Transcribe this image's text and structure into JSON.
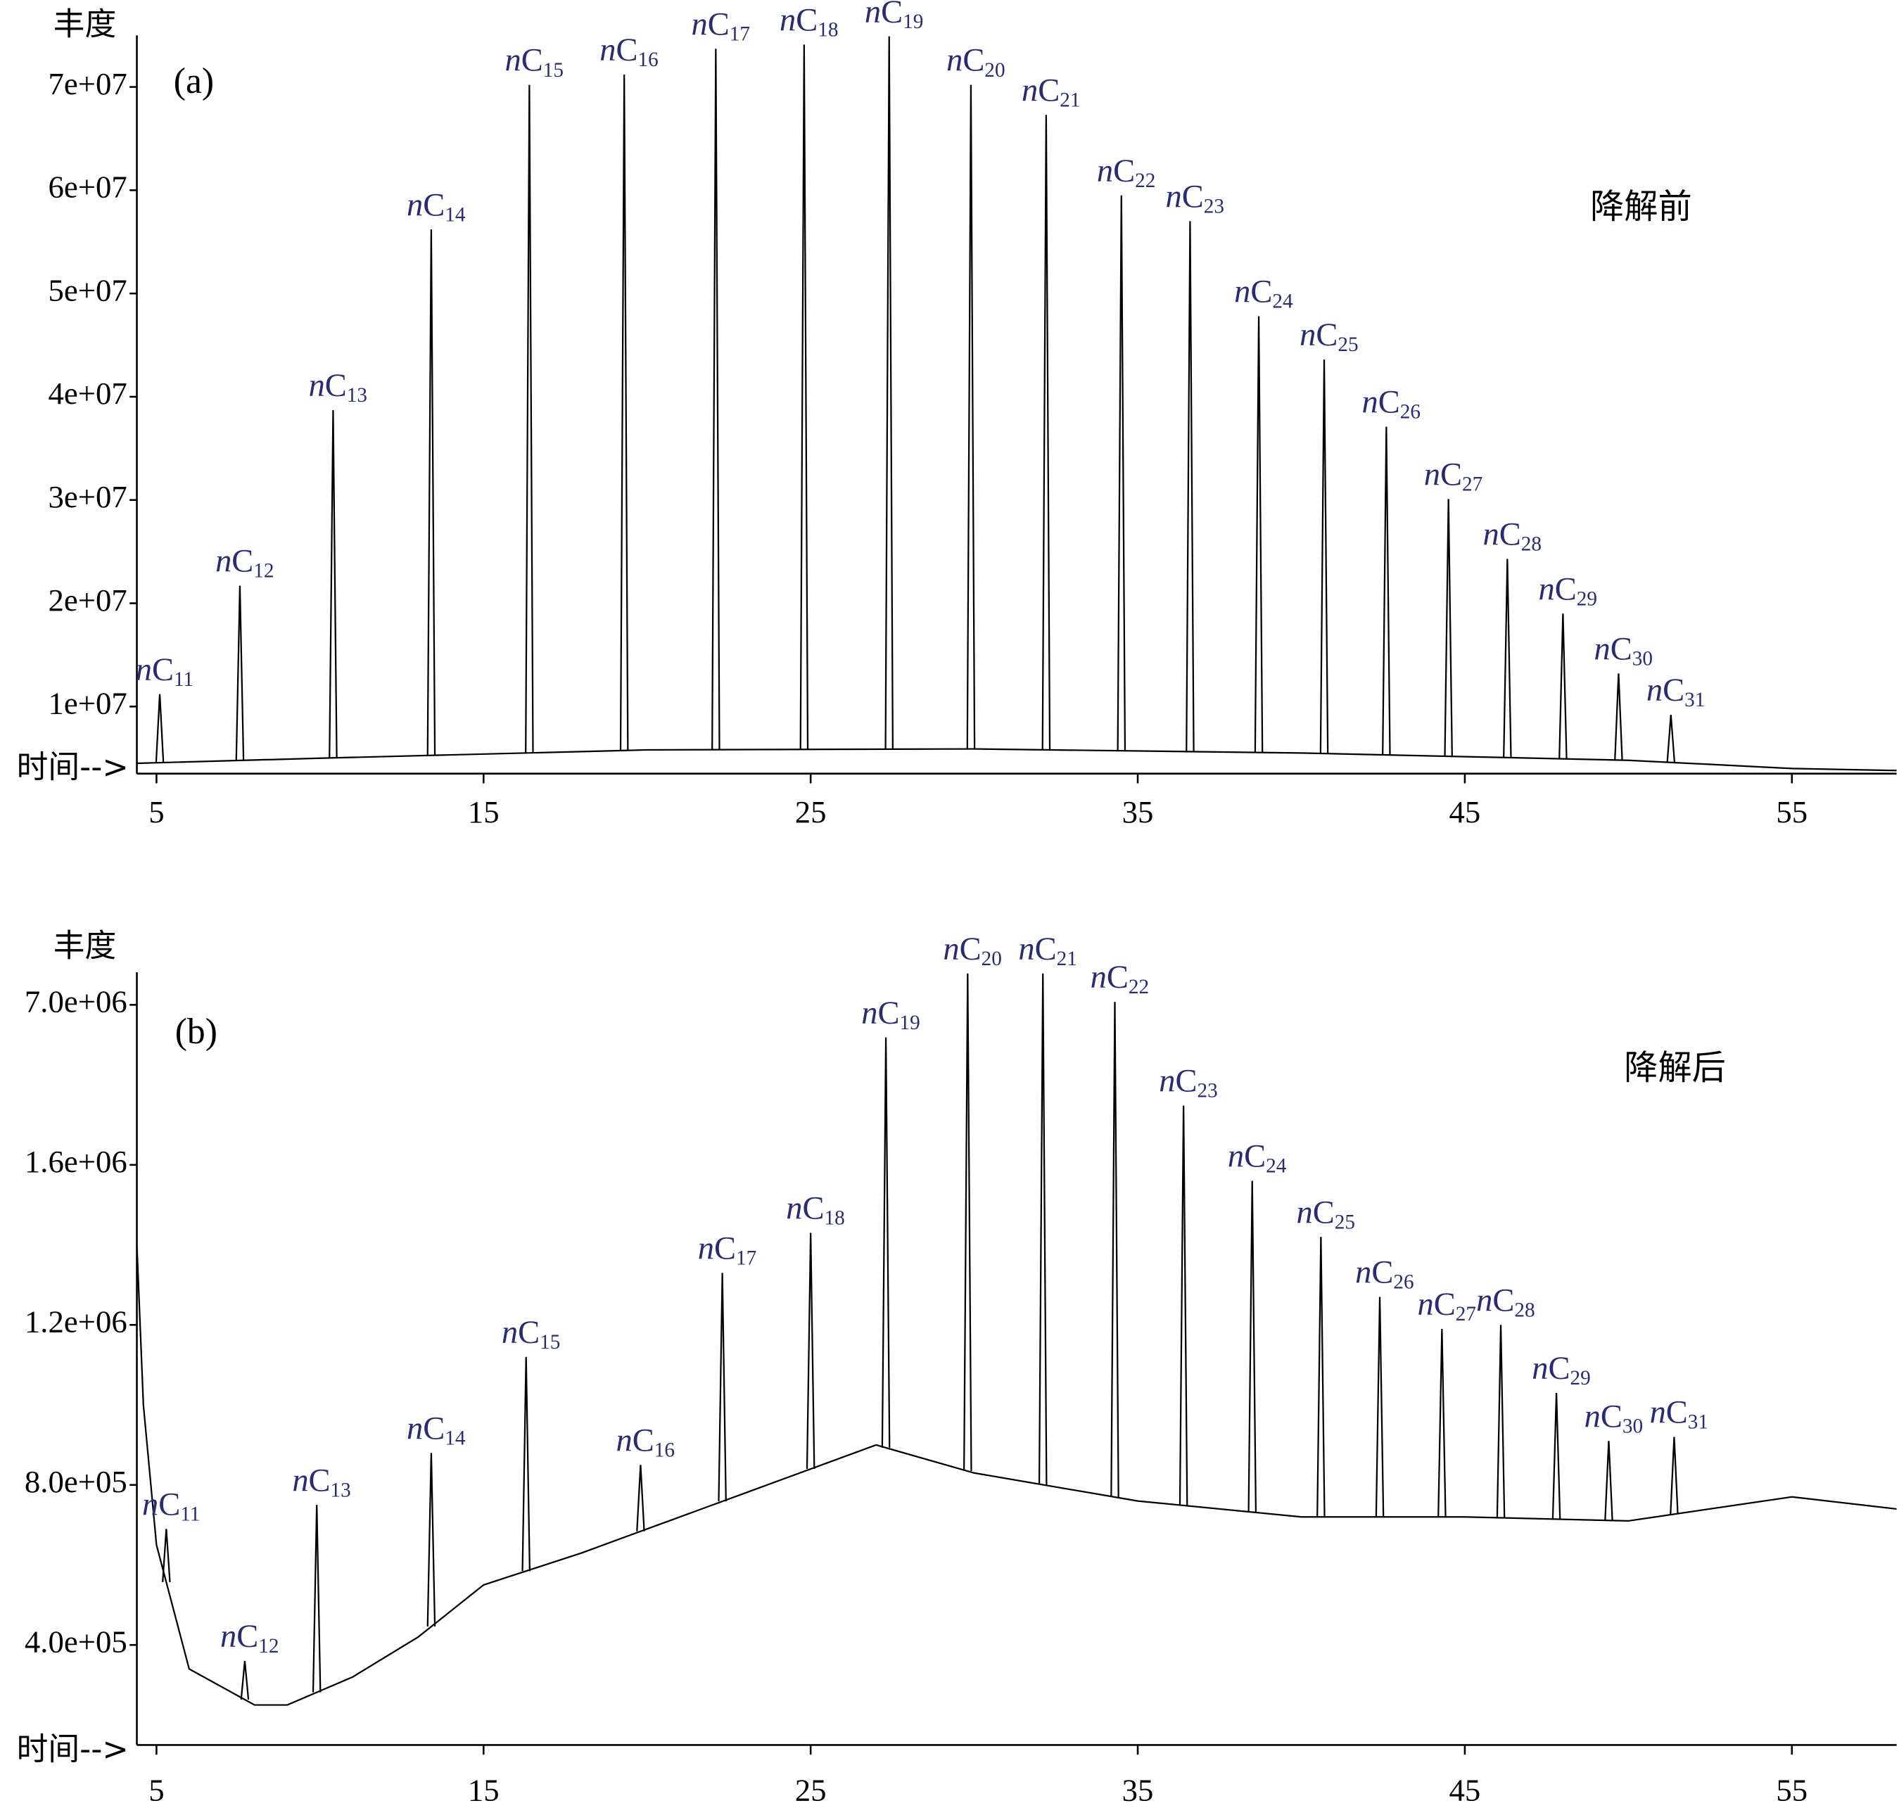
{
  "chart_data": [
    {
      "type": "line",
      "label": "(a)",
      "annotation": "降解前",
      "ylabel": "丰度",
      "xlabel": "时间-->",
      "xlim": [
        4.4,
        58.2
      ],
      "xticks": [
        5,
        15,
        25,
        35,
        45,
        55
      ],
      "ylim": [
        3500000,
        75000000
      ],
      "yticks": [
        {
          "value": 10000000,
          "label": "1e+07"
        },
        {
          "value": 20000000,
          "label": "2e+07"
        },
        {
          "value": 30000000,
          "label": "3e+07"
        },
        {
          "value": 40000000,
          "label": "4e+07"
        },
        {
          "value": 50000000,
          "label": "5e+07"
        },
        {
          "value": 60000000,
          "label": "6e+07"
        },
        {
          "value": 70000000,
          "label": "7e+07"
        }
      ],
      "peaks": {
        "color": "#000000",
        "names": [
          "nC11",
          "nC12",
          "nC13",
          "nC14",
          "nC15",
          "nC16",
          "nC17",
          "nC18",
          "nC19",
          "nC20",
          "nC21",
          "nC22",
          "nC23",
          "nC24",
          "nC25",
          "nC26",
          "nC27",
          "nC28",
          "nC29",
          "nC30",
          "nC31"
        ],
        "x": [
          5.1,
          7.55,
          10.4,
          13.4,
          16.4,
          19.3,
          22.1,
          24.8,
          27.4,
          29.9,
          32.2,
          34.5,
          36.6,
          38.7,
          40.7,
          42.6,
          44.5,
          46.3,
          48.0,
          49.7,
          51.3
        ],
        "values": [
          11200000,
          21700000,
          38700000,
          56200000,
          70200000,
          71200000,
          73700000,
          74100000,
          74900000,
          70200000,
          67300000,
          59500000,
          57000000,
          47800000,
          43600000,
          37100000,
          30100000,
          24300000,
          19000000,
          13200000,
          9200000
        ]
      },
      "series": [
        {
          "color": "#000000",
          "x": [
            4.4,
            10,
            20,
            30,
            40,
            50,
            55,
            58.2
          ],
          "values": [
            4500000,
            5000000,
            5800000,
            5900000,
            5500000,
            4800000,
            4000000,
            3800000
          ]
        }
      ]
    },
    {
      "type": "line",
      "label": "(b)",
      "annotation": "降解后",
      "ylabel": "丰度",
      "xlabel": "时间-->",
      "xlim": [
        4.4,
        58.2
      ],
      "xticks": [
        5,
        15,
        25,
        35,
        45,
        55
      ],
      "ylim": [
        150000,
        8100000
      ],
      "yticks": [
        {
          "value": 400000,
          "label": "4.0e+05"
        },
        {
          "value": 800000,
          "label": "8.0e+05"
        },
        {
          "value": 1200000,
          "label": "1.2e+06"
        },
        {
          "value": 1600000,
          "label": "1.6e+06"
        },
        {
          "value": 7000000,
          "label": "7.0e+06"
        }
      ],
      "peaks": {
        "color": "#000000",
        "names": [
          "nC11",
          "nC12",
          "nC13",
          "nC14",
          "nC15",
          "nC16",
          "nC17",
          "nC18",
          "nC19",
          "nC20",
          "nC21",
          "nC22",
          "nC23",
          "nC24",
          "nC25",
          "nC26",
          "nC27",
          "nC28",
          "nC29",
          "nC30",
          "nC31"
        ],
        "x": [
          5.3,
          7.7,
          9.9,
          13.4,
          16.3,
          19.8,
          22.3,
          25.0,
          27.3,
          29.8,
          32.1,
          34.3,
          36.4,
          38.5,
          40.6,
          42.4,
          44.3,
          46.1,
          47.8,
          49.4,
          51.4
        ],
        "values": [
          690000,
          360000,
          750000,
          880000,
          1120000,
          850000,
          1330000,
          1430000,
          5900000,
          8060000,
          8060000,
          7100000,
          3600000,
          1560000,
          1420000,
          1270000,
          1190000,
          1200000,
          1030000,
          910000,
          920000
        ]
      },
      "series": [
        {
          "color": "#000000",
          "x": [
            4.4,
            4.6,
            5,
            6,
            8,
            9,
            11,
            13,
            15,
            18,
            22,
            27,
            30,
            35,
            40,
            45,
            50,
            55,
            58.2
          ],
          "values": [
            1400000,
            1000000,
            650000,
            340000,
            250000,
            250000,
            320000,
            420000,
            550000,
            630000,
            750000,
            900000,
            830000,
            760000,
            720000,
            720000,
            710000,
            770000,
            740000
          ]
        }
      ]
    }
  ]
}
